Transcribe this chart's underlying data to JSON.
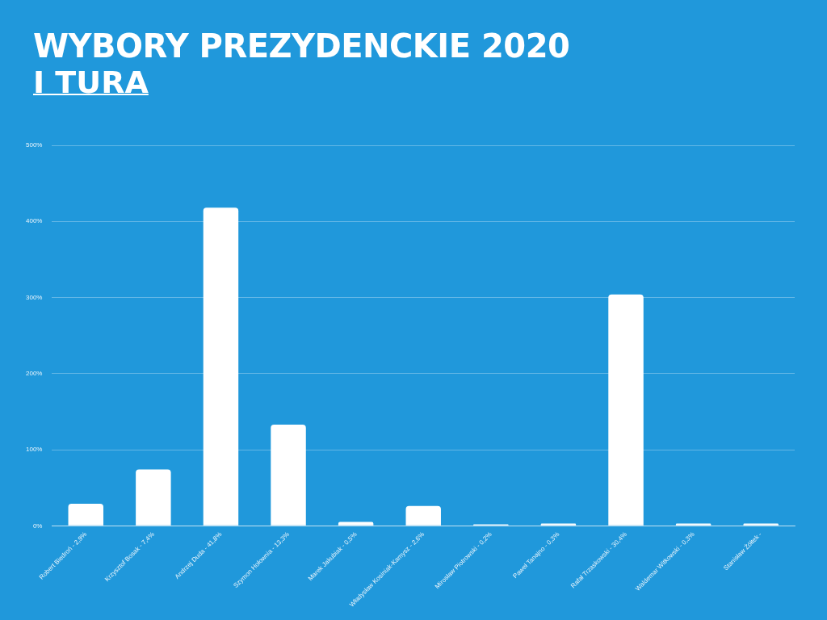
{
  "chart_data": {
    "type": "bar",
    "title": "WYBORY PREZYDENCKIE 2020",
    "subtitle": "I TURA",
    "categories": [
      "Robert Biedroń - 2,9%",
      "Krzysztof Bosak - 7,4%",
      "Andrzej Duda - 41,8%",
      "Szymon Hołownia - 13,3%",
      "Marek Jakubiak - 0,5%",
      "Władysław Kosiniak-Kamysz - 2,6%",
      "Mirosław Piotrowski - 0,2%",
      "Paweł Tanajno - 0,3%",
      "Rafał Trzaskowski - 30,4%",
      "Waldemar Witkowski - 0,3%",
      "Stanisław Żółtek -"
    ],
    "values": [
      29,
      74,
      418,
      133,
      5,
      26,
      2,
      3,
      304,
      3,
      3
    ],
    "color": "#ffffff",
    "ylim": [
      0,
      500
    ],
    "yticks": [
      {
        "value": 0,
        "label": "0%"
      },
      {
        "value": 100,
        "label": "100%"
      },
      {
        "value": 200,
        "label": "200%"
      },
      {
        "value": 300,
        "label": "300%"
      },
      {
        "value": 400,
        "label": "400%"
      },
      {
        "value": 500,
        "label": "500%"
      }
    ],
    "grid": "y"
  }
}
